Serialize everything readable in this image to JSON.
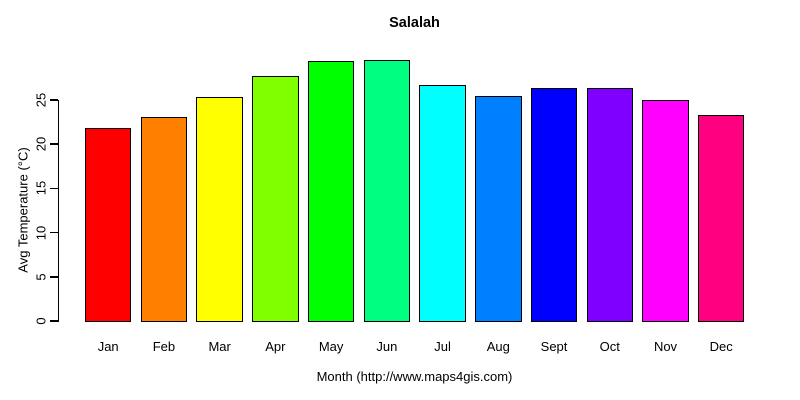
{
  "figure": {
    "background": "#FFFFFF",
    "text_color": "#000000"
  },
  "chart_data": {
    "type": "bar",
    "title": "Salalah",
    "xlabel": "Month (http://www.maps4gis.com)",
    "ylabel": "Avg Temperature (°C)",
    "categories": [
      "Jan",
      "Feb",
      "Mar",
      "Apr",
      "May",
      "Jun",
      "Jul",
      "Aug",
      "Sept",
      "Oct",
      "Nov",
      "Dec"
    ],
    "values": [
      22.0,
      23.2,
      25.4,
      27.8,
      29.5,
      29.6,
      26.8,
      25.6,
      26.5,
      26.5,
      25.1,
      23.4
    ],
    "bar_colors": [
      "#FF0000",
      "#FF8000",
      "#FFFF00",
      "#80FF00",
      "#00FF00",
      "#00FF80",
      "#00FFFF",
      "#0080FF",
      "#0000FF",
      "#8000FF",
      "#FF00FF",
      "#FF0080"
    ],
    "bar_border_color": "#000000",
    "yticks": [
      0,
      5,
      10,
      15,
      20,
      25
    ],
    "ylim": [
      0,
      29.7
    ],
    "grid": false,
    "legend": "none"
  }
}
